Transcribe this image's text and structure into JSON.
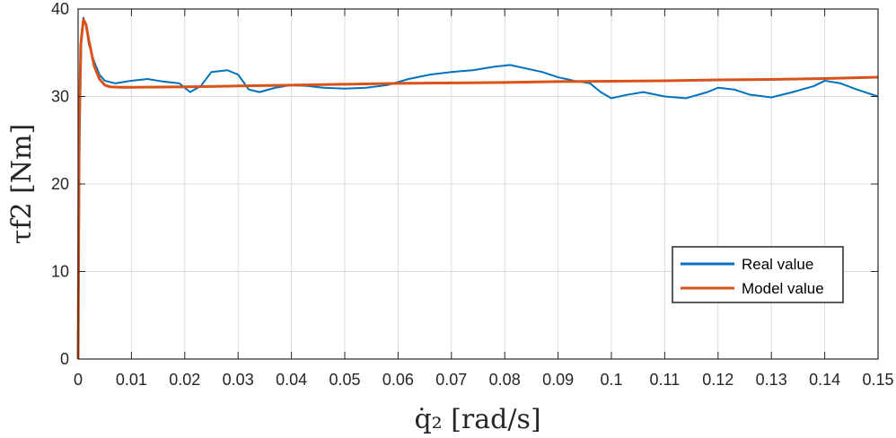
{
  "chart_data": {
    "type": "line",
    "title": "",
    "xlabel": "q̇₂ [rad/s]",
    "ylabel": "τf2 [Nm]",
    "xlim": [
      0,
      0.15
    ],
    "ylim": [
      0,
      40
    ],
    "x_ticks": [
      0,
      0.01,
      0.02,
      0.03,
      0.04,
      0.05,
      0.06,
      0.07,
      0.08,
      0.09,
      0.1,
      0.11,
      0.12,
      0.13,
      0.14,
      0.15
    ],
    "x_tick_labels": [
      "0",
      "0.01",
      "0.02",
      "0.03",
      "0.04",
      "0.05",
      "0.06",
      "0.07",
      "0.08",
      "0.09",
      "0.1",
      "0.11",
      "0.12",
      "0.13",
      "0.14",
      "0.15"
    ],
    "y_ticks": [
      0,
      10,
      20,
      30,
      40
    ],
    "y_tick_labels": [
      "0",
      "10",
      "20",
      "30",
      "40"
    ],
    "grid": true,
    "legend_position": "bottom-right",
    "series": [
      {
        "name": "Real value",
        "color": "#0072BD",
        "x": [
          0,
          0.0003,
          0.0006,
          0.001,
          0.0015,
          0.002,
          0.003,
          0.004,
          0.005,
          0.007,
          0.01,
          0.013,
          0.016,
          0.019,
          0.021,
          0.023,
          0.025,
          0.028,
          0.03,
          0.032,
          0.034,
          0.037,
          0.04,
          0.043,
          0.046,
          0.05,
          0.054,
          0.058,
          0.062,
          0.066,
          0.07,
          0.074,
          0.078,
          0.081,
          0.084,
          0.087,
          0.09,
          0.093,
          0.096,
          0.098,
          0.1,
          0.103,
          0.106,
          0.11,
          0.114,
          0.118,
          0.12,
          0.123,
          0.126,
          0.13,
          0.134,
          0.138,
          0.14,
          0.143,
          0.146,
          0.15
        ],
        "y": [
          0,
          27,
          36,
          39,
          38,
          36,
          34,
          32.5,
          31.8,
          31.5,
          31.8,
          32,
          31.7,
          31.5,
          30.5,
          31.2,
          32.8,
          33,
          32.5,
          30.8,
          30.5,
          31,
          31.3,
          31.2,
          31,
          30.9,
          31,
          31.3,
          32,
          32.5,
          32.8,
          33,
          33.4,
          33.6,
          33.2,
          32.8,
          32.2,
          31.8,
          31.5,
          30.5,
          29.8,
          30.2,
          30.5,
          30,
          29.8,
          30.5,
          31,
          30.8,
          30.2,
          29.9,
          30.5,
          31.2,
          31.8,
          31.5,
          30.8,
          30
        ]
      },
      {
        "name": "Model value",
        "color": "#D95319",
        "x": [
          0,
          0.0002,
          0.0005,
          0.001,
          0.0015,
          0.002,
          0.003,
          0.004,
          0.005,
          0.006,
          0.008,
          0.01,
          0.02,
          0.03,
          0.04,
          0.05,
          0.06,
          0.07,
          0.08,
          0.09,
          0.1,
          0.11,
          0.12,
          0.13,
          0.14,
          0.15
        ],
        "y": [
          0,
          25,
          36,
          38.8,
          38.2,
          36.5,
          33.5,
          32,
          31.3,
          31.1,
          31.05,
          31.05,
          31.1,
          31.2,
          31.3,
          31.4,
          31.5,
          31.55,
          31.6,
          31.7,
          31.75,
          31.8,
          31.9,
          31.95,
          32.05,
          32.2
        ]
      }
    ]
  }
}
